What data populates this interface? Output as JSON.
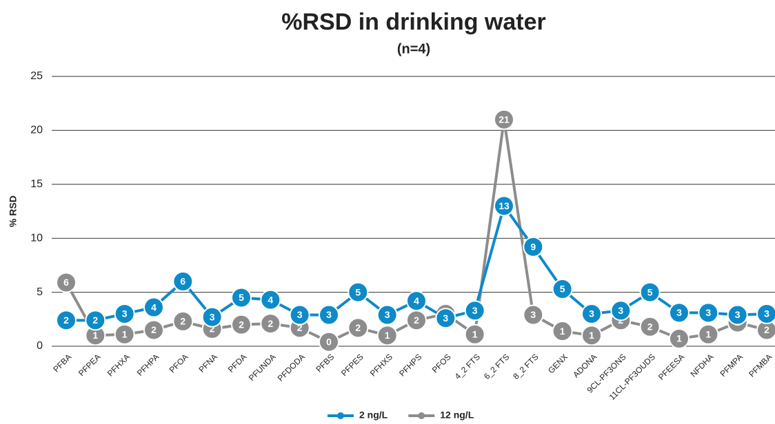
{
  "chart_data": {
    "type": "line",
    "title": "%RSD in drinking water",
    "subtitle": "(n=4)",
    "y_label": "% RSD",
    "categories": [
      "PFBA",
      "PFPEA",
      "PFHXA",
      "PFHPA",
      "PFOA",
      "PFNA",
      "PFDA",
      "PFUNDA",
      "PFDODA",
      "PFBS",
      "PFPES",
      "PFHXS",
      "PFHPS",
      "PFOS",
      "4_2 FTS",
      "6_2 FTS",
      "8_2 FTS",
      "GENX",
      "ADONA",
      "9CL-PF3ONS",
      "11CL-PF3OUDS",
      "PFEESA",
      "NFDHA",
      "PFMPA",
      "PFMBA"
    ],
    "series": [
      {
        "name": "2 ng/L",
        "color": "#0e8ac8",
        "values": [
          2.4,
          2.4,
          3.0,
          3.6,
          6.0,
          2.7,
          4.5,
          4.3,
          2.9,
          2.9,
          5.0,
          2.9,
          4.2,
          2.6,
          3.3,
          13.0,
          9.2,
          5.3,
          3.0,
          3.3,
          5.0,
          3.1,
          3.1,
          2.9,
          3.0
        ],
        "value_labels": [
          "2",
          "2",
          "3",
          "4",
          "6",
          "3",
          "5",
          "4",
          "3",
          "3",
          "5",
          "3",
          "4",
          "3",
          "3",
          "13",
          "9",
          "5",
          "3",
          "3",
          "5",
          "3",
          "3",
          "3",
          "3"
        ]
      },
      {
        "name": "12 ng/L",
        "color": "#8c8c8c",
        "values": [
          5.9,
          1.0,
          1.1,
          1.5,
          2.3,
          1.6,
          2.0,
          2.1,
          1.7,
          0.4,
          1.7,
          1.0,
          2.4,
          3.0,
          1.1,
          21.0,
          2.9,
          1.4,
          1.0,
          2.4,
          1.8,
          0.7,
          1.1,
          2.2,
          1.5
        ],
        "value_labels": [
          "6",
          "1",
          "1",
          "2",
          "2",
          "2",
          "2",
          "2",
          "2",
          "0",
          "2",
          "1",
          "2",
          "3",
          "1",
          "21",
          "3",
          "1",
          "1",
          "2",
          "2",
          "1",
          "1",
          "2",
          "2"
        ]
      }
    ],
    "ylim": [
      0,
      25
    ],
    "yticks": [
      0,
      5,
      10,
      15,
      20,
      25
    ],
    "grid": true,
    "legend": "bottom"
  }
}
